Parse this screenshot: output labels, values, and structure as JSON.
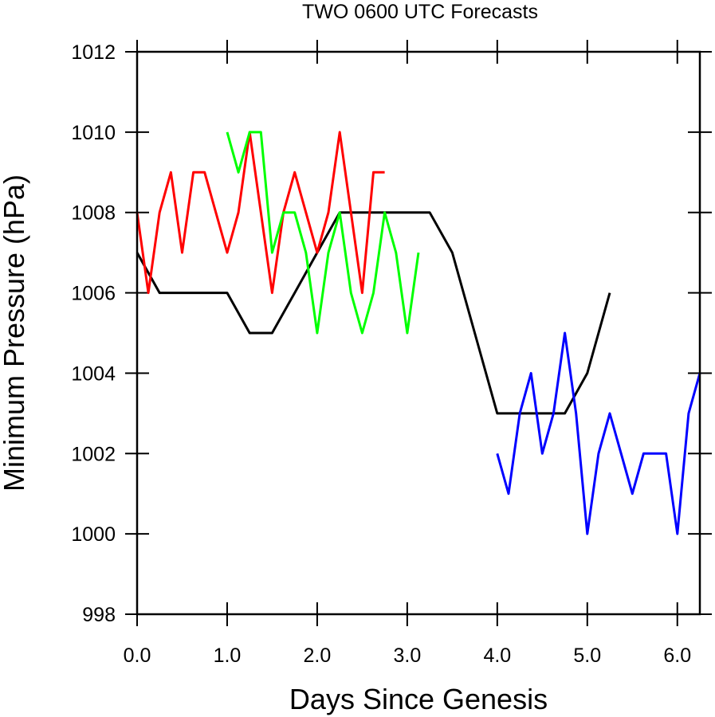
{
  "chart_data": {
    "type": "line",
    "title": "TWO 0600 UTC Forecasts",
    "xlabel": "Days Since Genesis",
    "ylabel": "Minimum Pressure (hPa)",
    "xlim": [
      0,
      6.25
    ],
    "ylim": [
      998,
      1012
    ],
    "xticks": [
      0,
      1,
      2,
      3,
      4,
      5,
      6
    ],
    "xtick_labels": [
      "0.0",
      "1.0",
      "2.0",
      "3.0",
      "4.0",
      "5.0",
      "6.0"
    ],
    "yticks": [
      998,
      1000,
      1002,
      1004,
      1006,
      1008,
      1010,
      1012
    ],
    "ytick_labels": [
      "998",
      "1000",
      "1002",
      "1004",
      "1006",
      "1008",
      "1010",
      "1012"
    ],
    "grid": false,
    "legend": "none",
    "series": [
      {
        "color": "#000000",
        "x": [
          0,
          0.25,
          0.5,
          0.75,
          1.0,
          1.25,
          1.5,
          1.75,
          2.0,
          2.25,
          2.5,
          2.75,
          3.0,
          3.25,
          3.5,
          3.75,
          4.0,
          4.25,
          4.5,
          4.75,
          5.0,
          5.25
        ],
        "y": [
          1007,
          1006,
          1006,
          1006,
          1006,
          1005,
          1005,
          1006,
          1007,
          1008,
          1008,
          1008,
          1008,
          1008,
          1007,
          1005,
          1003,
          1003,
          1003,
          1003,
          1004,
          1006
        ]
      },
      {
        "color": "#ff0000",
        "x": [
          0,
          0.125,
          0.25,
          0.375,
          0.5,
          0.625,
          0.75,
          0.875,
          1.0,
          1.125,
          1.25,
          1.375,
          1.5,
          1.625,
          1.75,
          1.875,
          2.0,
          2.125,
          2.25,
          2.375,
          2.5,
          2.625,
          2.75
        ],
        "y": [
          1008,
          1006,
          1008,
          1009,
          1007,
          1009,
          1009,
          1008,
          1007,
          1008,
          1010,
          1008,
          1006,
          1008,
          1009,
          1008,
          1007,
          1008,
          1010,
          1008,
          1006,
          1009,
          1009
        ]
      },
      {
        "color": "#00ff00",
        "x": [
          1.0,
          1.125,
          1.25,
          1.375,
          1.5,
          1.625,
          1.75,
          1.875,
          2.0,
          2.125,
          2.25,
          2.375,
          2.5,
          2.625,
          2.75,
          2.875,
          3.0,
          3.125
        ],
        "y": [
          1010,
          1009,
          1010,
          1010,
          1007,
          1008,
          1008,
          1007,
          1005,
          1007,
          1008,
          1006,
          1005,
          1006,
          1008,
          1007,
          1005,
          1007
        ]
      },
      {
        "color": "#0000ff",
        "x": [
          4.0,
          4.125,
          4.25,
          4.375,
          4.5,
          4.625,
          4.75,
          4.875,
          5.0,
          5.125,
          5.25,
          5.375,
          5.5,
          5.625,
          5.75,
          5.875,
          6.0,
          6.125,
          6.25
        ],
        "y": [
          1002,
          1001,
          1003,
          1004,
          1002,
          1003,
          1005,
          1003,
          1000,
          1002,
          1003,
          1002,
          1001,
          1002,
          1002,
          1002,
          1000,
          1003,
          1004
        ]
      }
    ]
  }
}
